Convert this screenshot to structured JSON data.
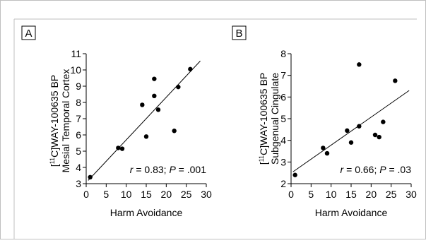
{
  "chart_data": [
    {
      "panel": "A",
      "type": "scatter",
      "xlabel": "Harm Avoidance",
      "ylabel_line1_prefix": "[",
      "ylabel_line1_sup": "11",
      "ylabel_line1_rest": "C]WAY-100635 BP",
      "ylabel_line2": "Mesial Temporal Cortex",
      "xlim": [
        0,
        30
      ],
      "ylim": [
        3,
        11
      ],
      "xticks": [
        0,
        5,
        10,
        15,
        20,
        25,
        30
      ],
      "yticks": [
        3,
        4,
        5,
        6,
        7,
        8,
        9,
        10,
        11
      ],
      "points": [
        {
          "x": 1,
          "y": 3.4
        },
        {
          "x": 8,
          "y": 5.2
        },
        {
          "x": 9,
          "y": 5.15
        },
        {
          "x": 14,
          "y": 7.85
        },
        {
          "x": 15,
          "y": 5.9
        },
        {
          "x": 17,
          "y": 9.45
        },
        {
          "x": 17,
          "y": 8.4
        },
        {
          "x": 18,
          "y": 7.55
        },
        {
          "x": 22,
          "y": 6.25
        },
        {
          "x": 23,
          "y": 8.95
        },
        {
          "x": 26,
          "y": 10.05
        }
      ],
      "fit_line": {
        "x": [
          0.5,
          28.5
        ],
        "y": [
          3.2,
          10.55
        ]
      },
      "stat_r": "0.83",
      "stat_p": ".001"
    },
    {
      "panel": "B",
      "type": "scatter",
      "xlabel": "Harm Avoidance",
      "ylabel_line1_prefix": "[",
      "ylabel_line1_sup": "11",
      "ylabel_line1_rest": "C]WAY-100635 BP",
      "ylabel_line2": "Subgenual Cingulate",
      "xlim": [
        0,
        30
      ],
      "ylim": [
        2,
        8
      ],
      "xticks": [
        0,
        5,
        10,
        15,
        20,
        25,
        30
      ],
      "yticks": [
        2,
        3,
        4,
        5,
        6,
        7,
        8
      ],
      "points": [
        {
          "x": 1,
          "y": 2.4
        },
        {
          "x": 8,
          "y": 3.65
        },
        {
          "x": 9,
          "y": 3.4
        },
        {
          "x": 14,
          "y": 4.45
        },
        {
          "x": 15,
          "y": 3.9
        },
        {
          "x": 17,
          "y": 7.5
        },
        {
          "x": 17,
          "y": 4.65
        },
        {
          "x": 21,
          "y": 4.25
        },
        {
          "x": 22,
          "y": 4.15
        },
        {
          "x": 23,
          "y": 4.85
        },
        {
          "x": 26,
          "y": 6.75
        }
      ],
      "fit_line": {
        "x": [
          0.5,
          29.5
        ],
        "y": [
          2.55,
          6.3
        ]
      },
      "stat_r": "0.66",
      "stat_p": ".03"
    }
  ],
  "stat_r_symbol": "r",
  "stat_p_symbol": "P",
  "stat_eq": " = ",
  "stat_sep": "; "
}
